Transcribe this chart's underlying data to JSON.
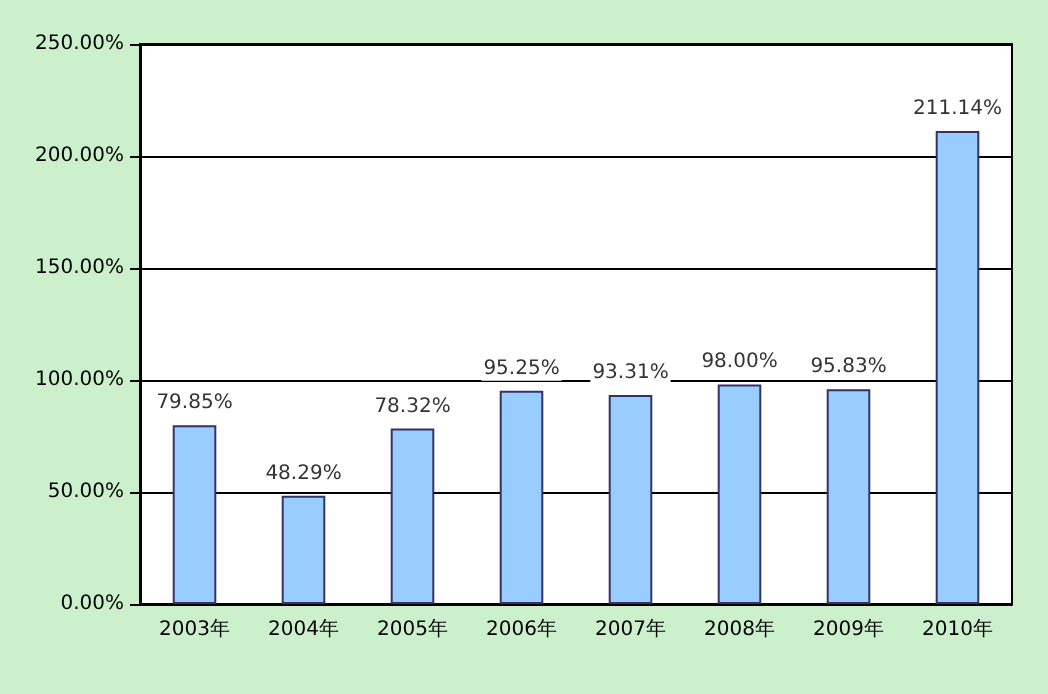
{
  "chart_data": {
    "type": "bar",
    "categories": [
      "2003年",
      "2004年",
      "2005年",
      "2006年",
      "2007年",
      "2008年",
      "2009年",
      "2010年"
    ],
    "values": [
      79.85,
      48.29,
      78.32,
      95.25,
      93.31,
      98.0,
      95.83,
      211.14
    ],
    "value_labels": [
      "79.85%",
      "48.29%",
      "78.32%",
      "95.25%",
      "93.31%",
      "98.00%",
      "95.83%",
      "211.14%"
    ],
    "color": "#99ccff",
    "ylim": [
      0,
      250
    ],
    "yticks": [
      {
        "value": 0,
        "label": "0.00%"
      },
      {
        "value": 50,
        "label": "50.00%"
      },
      {
        "value": 100,
        "label": "100.00%"
      },
      {
        "value": 150,
        "label": "150.00%"
      },
      {
        "value": 200,
        "label": "200.00%"
      },
      {
        "value": 250,
        "label": "250.00%"
      }
    ],
    "grid": "y"
  }
}
